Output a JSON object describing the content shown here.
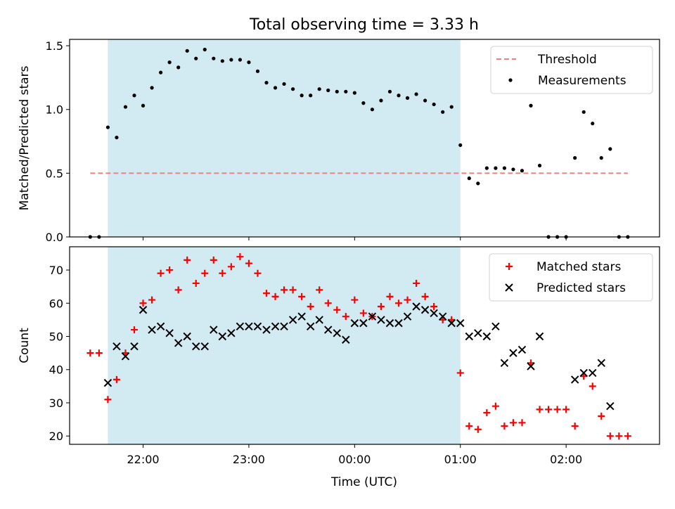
{
  "chart_data": {
    "title": "Total observing time = 3.33 h",
    "xlabel": "Time (UTC)",
    "x_ticks": [
      "22:00",
      "23:00",
      "00:00",
      "01:00",
      "02:00"
    ],
    "time_unit": "UTC clock time",
    "shaded_span": [
      "21:40",
      "01:00"
    ],
    "shade_color": "#add8e6",
    "grid": false,
    "panels": [
      {
        "type": "scatter",
        "ylabel": "Matched/Predicted stars",
        "ylim": [
          0,
          1.55
        ],
        "y_ticks": [
          "0.0",
          "0.5",
          "1.0",
          "1.5"
        ],
        "threshold": {
          "name": "Threshold",
          "value": 0.5,
          "x_range": [
            "21:30",
            "02:35"
          ],
          "color": "#f08080"
        },
        "legend": {
          "position": "top-right",
          "entries": [
            "Threshold",
            "Measurements"
          ]
        },
        "series": [
          {
            "name": "Measurements",
            "marker": "dot",
            "color": "#000000",
            "points": [
              [
                "21:30",
                0.0
              ],
              [
                "21:35",
                0.0
              ],
              [
                "21:40",
                0.86
              ],
              [
                "21:45",
                0.78
              ],
              [
                "21:50",
                1.02
              ],
              [
                "21:55",
                1.11
              ],
              [
                "22:00",
                1.03
              ],
              [
                "22:05",
                1.17
              ],
              [
                "22:10",
                1.29
              ],
              [
                "22:15",
                1.37
              ],
              [
                "22:20",
                1.33
              ],
              [
                "22:25",
                1.46
              ],
              [
                "22:30",
                1.4
              ],
              [
                "22:35",
                1.47
              ],
              [
                "22:40",
                1.4
              ],
              [
                "22:45",
                1.38
              ],
              [
                "22:50",
                1.39
              ],
              [
                "22:55",
                1.39
              ],
              [
                "23:00",
                1.37
              ],
              [
                "23:05",
                1.3
              ],
              [
                "23:10",
                1.21
              ],
              [
                "23:15",
                1.17
              ],
              [
                "23:20",
                1.2
              ],
              [
                "23:25",
                1.16
              ],
              [
                "23:30",
                1.11
              ],
              [
                "23:35",
                1.11
              ],
              [
                "23:40",
                1.16
              ],
              [
                "23:45",
                1.15
              ],
              [
                "23:50",
                1.14
              ],
              [
                "23:55",
                1.14
              ],
              [
                "00:00",
                1.13
              ],
              [
                "00:05",
                1.05
              ],
              [
                "00:10",
                1.0
              ],
              [
                "00:15",
                1.07
              ],
              [
                "00:20",
                1.14
              ],
              [
                "00:25",
                1.11
              ],
              [
                "00:30",
                1.09
              ],
              [
                "00:35",
                1.12
              ],
              [
                "00:40",
                1.07
              ],
              [
                "00:45",
                1.04
              ],
              [
                "00:50",
                0.98
              ],
              [
                "00:55",
                1.02
              ],
              [
                "01:00",
                0.72
              ],
              [
                "01:05",
                0.46
              ],
              [
                "01:10",
                0.42
              ],
              [
                "01:15",
                0.54
              ],
              [
                "01:20",
                0.54
              ],
              [
                "01:25",
                0.54
              ],
              [
                "01:30",
                0.53
              ],
              [
                "01:35",
                0.52
              ],
              [
                "01:40",
                1.03
              ],
              [
                "01:45",
                0.56
              ],
              [
                "01:50",
                0.0
              ],
              [
                "01:55",
                0.0
              ],
              [
                "02:00",
                0.0
              ],
              [
                "02:05",
                0.62
              ],
              [
                "02:10",
                0.98
              ],
              [
                "02:15",
                0.89
              ],
              [
                "02:20",
                0.62
              ],
              [
                "02:25",
                0.69
              ],
              [
                "02:30",
                0.0
              ],
              [
                "02:35",
                0.0
              ]
            ]
          }
        ]
      },
      {
        "type": "scatter",
        "ylabel": "Count",
        "ylim": [
          17.5,
          77
        ],
        "y_ticks": [
          "20",
          "30",
          "40",
          "50",
          "60",
          "70"
        ],
        "legend": {
          "position": "top-right",
          "entries": [
            "Matched stars",
            "Predicted stars"
          ]
        },
        "series": [
          {
            "name": "Matched stars",
            "marker": "plus",
            "color": "#ff0000",
            "points": [
              [
                "21:30",
                45
              ],
              [
                "21:35",
                45
              ],
              [
                "21:40",
                31
              ],
              [
                "21:45",
                37
              ],
              [
                "21:50",
                45
              ],
              [
                "21:55",
                52
              ],
              [
                "22:00",
                60
              ],
              [
                "22:05",
                61
              ],
              [
                "22:10",
                69
              ],
              [
                "22:15",
                70
              ],
              [
                "22:20",
                64
              ],
              [
                "22:25",
                73
              ],
              [
                "22:30",
                66
              ],
              [
                "22:35",
                69
              ],
              [
                "22:40",
                73
              ],
              [
                "22:45",
                69
              ],
              [
                "22:50",
                71
              ],
              [
                "22:55",
                74
              ],
              [
                "23:00",
                72
              ],
              [
                "23:05",
                69
              ],
              [
                "23:10",
                63
              ],
              [
                "23:15",
                62
              ],
              [
                "23:20",
                64
              ],
              [
                "23:25",
                64
              ],
              [
                "23:30",
                62
              ],
              [
                "23:35",
                59
              ],
              [
                "23:40",
                64
              ],
              [
                "23:45",
                60
              ],
              [
                "23:50",
                58
              ],
              [
                "23:55",
                56
              ],
              [
                "00:00",
                61
              ],
              [
                "00:05",
                57
              ],
              [
                "00:10",
                56
              ],
              [
                "00:15",
                59
              ],
              [
                "00:20",
                62
              ],
              [
                "00:25",
                60
              ],
              [
                "00:30",
                61
              ],
              [
                "00:35",
                66
              ],
              [
                "00:40",
                62
              ],
              [
                "00:45",
                59
              ],
              [
                "00:50",
                55
              ],
              [
                "00:55",
                55
              ],
              [
                "01:00",
                39
              ],
              [
                "01:05",
                23
              ],
              [
                "01:10",
                22
              ],
              [
                "01:15",
                27
              ],
              [
                "01:20",
                29
              ],
              [
                "01:25",
                23
              ],
              [
                "01:30",
                24
              ],
              [
                "01:35",
                24
              ],
              [
                "01:40",
                42
              ],
              [
                "01:45",
                28
              ],
              [
                "01:50",
                28
              ],
              [
                "01:55",
                28
              ],
              [
                "02:00",
                28
              ],
              [
                "02:05",
                23
              ],
              [
                "02:10",
                38
              ],
              [
                "02:15",
                35
              ],
              [
                "02:20",
                26
              ],
              [
                "02:25",
                20
              ],
              [
                "02:30",
                20
              ],
              [
                "02:35",
                20
              ]
            ]
          },
          {
            "name": "Predicted stars",
            "marker": "x",
            "color": "#000000",
            "points": [
              [
                "21:40",
                36
              ],
              [
                "21:45",
                47
              ],
              [
                "21:50",
                44
              ],
              [
                "21:55",
                47
              ],
              [
                "22:00",
                58
              ],
              [
                "22:05",
                52
              ],
              [
                "22:10",
                53
              ],
              [
                "22:15",
                51
              ],
              [
                "22:20",
                48
              ],
              [
                "22:25",
                50
              ],
              [
                "22:30",
                47
              ],
              [
                "22:35",
                47
              ],
              [
                "22:40",
                52
              ],
              [
                "22:45",
                50
              ],
              [
                "22:50",
                51
              ],
              [
                "22:55",
                53
              ],
              [
                "23:00",
                53
              ],
              [
                "23:05",
                53
              ],
              [
                "23:10",
                52
              ],
              [
                "23:15",
                53
              ],
              [
                "23:20",
                53
              ],
              [
                "23:25",
                55
              ],
              [
                "23:30",
                56
              ],
              [
                "23:35",
                53
              ],
              [
                "23:40",
                55
              ],
              [
                "23:45",
                52
              ],
              [
                "23:50",
                51
              ],
              [
                "23:55",
                49
              ],
              [
                "00:00",
                54
              ],
              [
                "00:05",
                54
              ],
              [
                "00:10",
                56
              ],
              [
                "00:15",
                55
              ],
              [
                "00:20",
                54
              ],
              [
                "00:25",
                54
              ],
              [
                "00:30",
                56
              ],
              [
                "00:35",
                59
              ],
              [
                "00:40",
                58
              ],
              [
                "00:45",
                57
              ],
              [
                "00:50",
                56
              ],
              [
                "00:55",
                54
              ],
              [
                "01:00",
                54
              ],
              [
                "01:05",
                50
              ],
              [
                "01:10",
                51
              ],
              [
                "01:15",
                50
              ],
              [
                "01:20",
                53
              ],
              [
                "01:25",
                42
              ],
              [
                "01:30",
                45
              ],
              [
                "01:35",
                46
              ],
              [
                "01:40",
                41
              ],
              [
                "01:45",
                50
              ],
              [
                "02:05",
                37
              ],
              [
                "02:10",
                39
              ],
              [
                "02:15",
                39
              ],
              [
                "02:20",
                42
              ],
              [
                "02:25",
                29
              ]
            ]
          }
        ]
      }
    ]
  }
}
